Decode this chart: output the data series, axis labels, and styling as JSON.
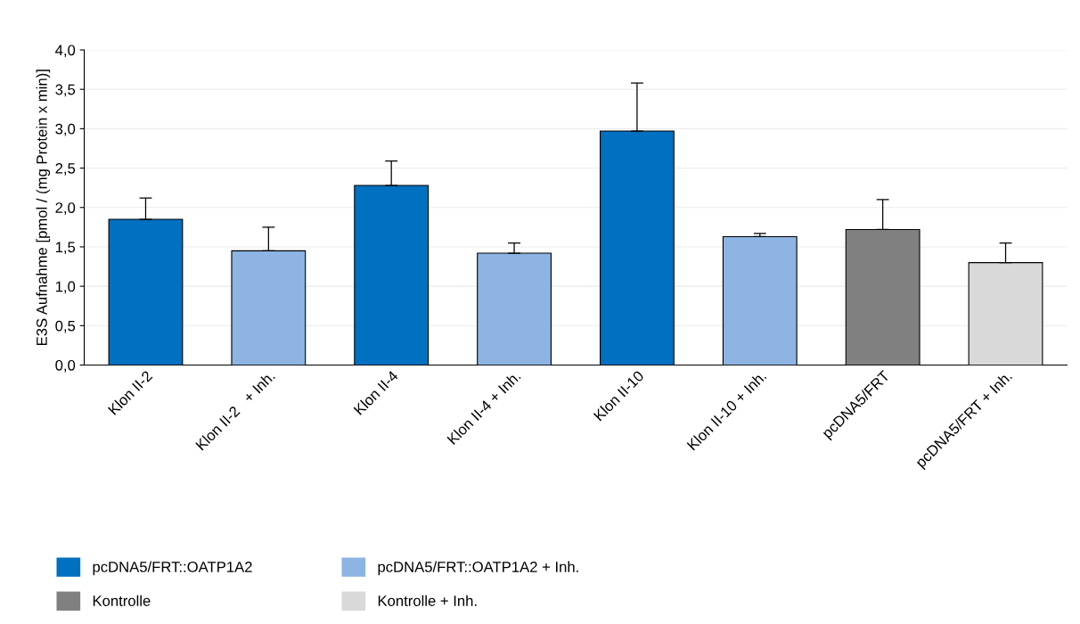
{
  "chart_data": {
    "type": "bar",
    "ylabel": "E3S Aufnahme [pmol / (mg Protein x min)]",
    "categories": [
      "Klon II-2",
      "Klon II-2   + Inh.",
      "Klon II-4",
      "Klon II-4 + Inh.",
      "Klon II-10",
      "Klon II-10 + Inh.",
      "pcDNA5/FRT",
      "pcDNA5/FRT + Inh."
    ],
    "series": [
      {
        "name": "pcDNA5/FRT::OATP1A2",
        "color": "#0070c0",
        "values": [
          1.85,
          null,
          2.28,
          null,
          2.97,
          null,
          null,
          null
        ],
        "errors": [
          [
            1.85,
            2.12
          ],
          null,
          [
            2.28,
            2.59
          ],
          null,
          [
            2.97,
            3.58
          ],
          null,
          null,
          null
        ]
      },
      {
        "name": "pcDNA5/FRT::OATP1A2 + Inh.",
        "color": "#8db4e2",
        "values": [
          null,
          1.45,
          null,
          1.42,
          null,
          1.63,
          null,
          null
        ],
        "errors": [
          null,
          [
            1.45,
            1.75
          ],
          null,
          [
            1.42,
            1.55
          ],
          null,
          [
            1.63,
            1.67
          ],
          null,
          null
        ]
      },
      {
        "name": "Kontrolle",
        "color": "#808080",
        "values": [
          null,
          null,
          null,
          null,
          null,
          null,
          1.72,
          null
        ],
        "errors": [
          null,
          null,
          null,
          null,
          null,
          null,
          [
            1.72,
            2.1
          ],
          null
        ]
      },
      {
        "name": "Kontrolle + Inh.",
        "color": "#d9d9d9",
        "values": [
          null,
          null,
          null,
          null,
          null,
          null,
          null,
          1.3
        ],
        "errors": [
          null,
          null,
          null,
          null,
          null,
          null,
          null,
          [
            1.3,
            1.55
          ]
        ]
      }
    ],
    "ylim": [
      0,
      4
    ],
    "yticks": [
      {
        "value": 0,
        "label": "0,0"
      },
      {
        "value": 0.5,
        "label": "0,5"
      },
      {
        "value": 1,
        "label": "1,0"
      },
      {
        "value": 1.5,
        "label": "1,5"
      },
      {
        "value": 2,
        "label": "2,0"
      },
      {
        "value": 2.5,
        "label": "2,5"
      },
      {
        "value": 3,
        "label": "3,0"
      },
      {
        "value": 3.5,
        "label": "3,5"
      },
      {
        "value": 4,
        "label": "4,0"
      }
    ],
    "grid": "y",
    "legend": "bottom left"
  }
}
